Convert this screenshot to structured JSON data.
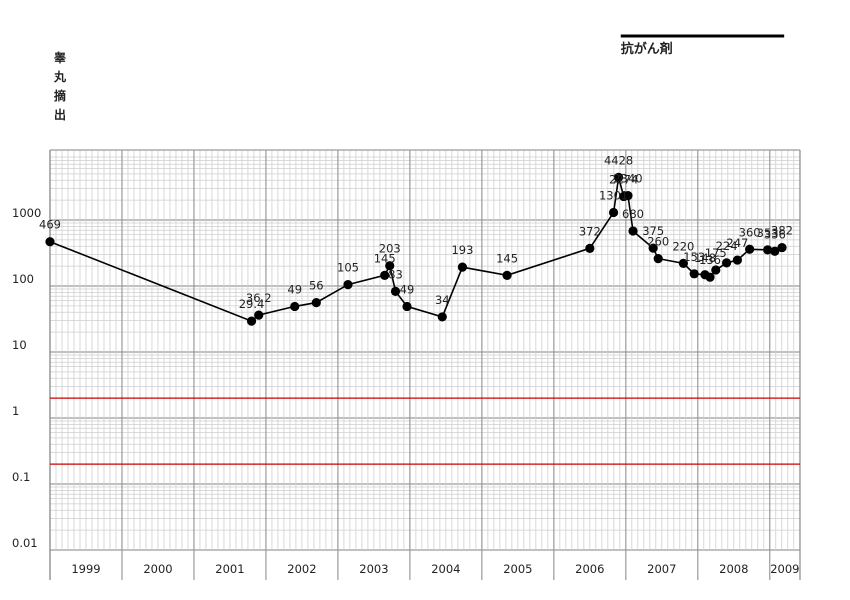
{
  "chart_data": {
    "type": "line",
    "title": "",
    "ylabel_chars": [
      "睾",
      "丸",
      "摘",
      "出"
    ],
    "ylabel": "睾丸摘出",
    "xlabel": "",
    "yscale": "log",
    "ylim": [
      0.01,
      3000
    ],
    "xlim": [
      1999.0,
      2009.42
    ],
    "year_labels": [
      "1999",
      "2000",
      "2001",
      "2002",
      "2003",
      "2004",
      "2005",
      "2006",
      "2007",
      "2008",
      "2009"
    ],
    "y_ticks": [
      {
        "value": 1000,
        "label": "1000"
      },
      {
        "value": 100,
        "label": "100"
      },
      {
        "value": 10,
        "label": "10"
      },
      {
        "value": 1,
        "label": "1"
      },
      {
        "value": 0.1,
        "label": "0.1"
      },
      {
        "value": 0.01,
        "label": "0.01"
      }
    ],
    "reference_lines": [
      2,
      0.2
    ],
    "reference_line_color": "#cc0000",
    "line_color": "#000000",
    "annotation": {
      "label": "抗がん剤",
      "start": 2006.93,
      "end": 2009.2
    },
    "series": [
      {
        "name": "",
        "points": [
          {
            "x": 1999.0,
            "y": 469,
            "label": "469"
          },
          {
            "x": 2001.8,
            "y": 29.4,
            "label": "29.4"
          },
          {
            "x": 2001.9,
            "y": 36.2,
            "label": "36.2"
          },
          {
            "x": 2002.4,
            "y": 49,
            "label": "49"
          },
          {
            "x": 2002.7,
            "y": 56,
            "label": "56"
          },
          {
            "x": 2003.14,
            "y": 105,
            "label": "105"
          },
          {
            "x": 2003.65,
            "y": 145,
            "label": "145"
          },
          {
            "x": 2003.72,
            "y": 203,
            "label": "203"
          },
          {
            "x": 2003.8,
            "y": 83,
            "label": "83"
          },
          {
            "x": 2003.96,
            "y": 49,
            "label": "49"
          },
          {
            "x": 2004.45,
            "y": 34,
            "label": "34"
          },
          {
            "x": 2004.73,
            "y": 193,
            "label": "193"
          },
          {
            "x": 2005.35,
            "y": 145,
            "label": "145"
          },
          {
            "x": 2006.5,
            "y": 372,
            "label": "372"
          },
          {
            "x": 2006.83,
            "y": 1301,
            "label": "1301"
          },
          {
            "x": 2006.9,
            "y": 4428,
            "label": "4428"
          },
          {
            "x": 2006.97,
            "y": 2274,
            "label": "2274"
          },
          {
            "x": 2007.03,
            "y": 2340,
            "label": "2340"
          },
          {
            "x": 2007.1,
            "y": 680,
            "label": "680"
          },
          {
            "x": 2007.38,
            "y": 375,
            "label": "375"
          },
          {
            "x": 2007.45,
            "y": 260,
            "label": "260"
          },
          {
            "x": 2007.8,
            "y": 220,
            "label": "220"
          },
          {
            "x": 2007.95,
            "y": 153,
            "label": "153"
          },
          {
            "x": 2008.1,
            "y": 148,
            "label": "148"
          },
          {
            "x": 2008.17,
            "y": 136,
            "label": "136"
          },
          {
            "x": 2008.25,
            "y": 175,
            "label": "175"
          },
          {
            "x": 2008.4,
            "y": 224,
            "label": "224"
          },
          {
            "x": 2008.55,
            "y": 247,
            "label": "247"
          },
          {
            "x": 2008.72,
            "y": 360,
            "label": "360"
          },
          {
            "x": 2008.97,
            "y": 353,
            "label": "353"
          },
          {
            "x": 2009.07,
            "y": 336,
            "label": "336"
          },
          {
            "x": 2009.17,
            "y": 382,
            "label": "382"
          }
        ]
      }
    ]
  }
}
